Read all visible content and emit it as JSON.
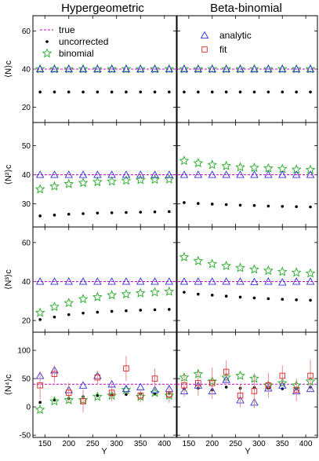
{
  "column_titles": [
    "Hypergeometric",
    "Beta-binomial"
  ],
  "xlabel": "Y",
  "legend_left": {
    "true": "true",
    "uncorrected": "uncorrected",
    "binomial": "binomial"
  },
  "legend_right": {
    "analytic": "analytic",
    "fit": "fit"
  },
  "colors": {
    "true": "#cc00cc",
    "analytic": "#3333dd",
    "fit": "#dd2222",
    "binomial": "#22aa22",
    "uncorrected": "#000000",
    "errorbar": "#e08080"
  },
  "chart_data": [
    {
      "type": "scatter",
      "panel": "top-left",
      "title": "Hypergeometric",
      "ylabel": "⟨N⟩c",
      "xlabel": "",
      "xlim": [
        125,
        425
      ],
      "ylim": [
        12,
        68
      ],
      "xticks": [
        150,
        200,
        250,
        300,
        350,
        400
      ],
      "yticks": [
        20,
        40,
        60
      ],
      "x": [
        140,
        170,
        200,
        230,
        260,
        290,
        320,
        350,
        380,
        410
      ],
      "true_value": 40,
      "series": [
        {
          "name": "uncorrected",
          "marker": "dot",
          "values": [
            28,
            28,
            28,
            28,
            28,
            28,
            28,
            28,
            28,
            28
          ]
        },
        {
          "name": "binomial",
          "marker": "star",
          "values": [
            40,
            40,
            40,
            40,
            40,
            40,
            40,
            40,
            40,
            40
          ]
        },
        {
          "marker": "triangle",
          "values": [
            40,
            40,
            40,
            40,
            40,
            40,
            40,
            40,
            40,
            40
          ]
        }
      ]
    },
    {
      "type": "scatter",
      "panel": "top-right",
      "title": "Beta-binomial",
      "xlim": [
        125,
        425
      ],
      "ylim": [
        12,
        68
      ],
      "xticks": [
        150,
        200,
        250,
        300,
        350,
        400
      ],
      "x": [
        140,
        170,
        200,
        230,
        260,
        290,
        320,
        350,
        380,
        410
      ],
      "true_value": 40,
      "series": [
        {
          "name": "uncorrected",
          "marker": "dot",
          "values": [
            28,
            28,
            28,
            28,
            28,
            28,
            28,
            28,
            28,
            28
          ]
        },
        {
          "name": "binomial",
          "marker": "star",
          "values": [
            40,
            40,
            40,
            40,
            40,
            40,
            40,
            40,
            40,
            40
          ]
        },
        {
          "name": "analytic",
          "marker": "triangle",
          "values": [
            40,
            40,
            40,
            40,
            40,
            40,
            40,
            40,
            40,
            40
          ]
        }
      ]
    },
    {
      "type": "scatter",
      "panel": "second-left",
      "ylabel": "⟨N²⟩c",
      "xlim": [
        125,
        425
      ],
      "ylim": [
        22,
        58
      ],
      "xticks": [
        150,
        200,
        250,
        300,
        350,
        400
      ],
      "yticks": [
        30,
        40,
        50
      ],
      "x": [
        140,
        170,
        200,
        230,
        260,
        290,
        320,
        350,
        380,
        410
      ],
      "true_value": 40,
      "series": [
        {
          "name": "uncorrected",
          "marker": "dot",
          "values": [
            25.8,
            26.1,
            26.4,
            26.6,
            26.8,
            26.9,
            27.0,
            27.1,
            27.2,
            27.3
          ]
        },
        {
          "name": "binomial",
          "marker": "star",
          "values": [
            35,
            36,
            36.8,
            37.2,
            37.5,
            37.7,
            38,
            38.2,
            38.3,
            38.4
          ]
        },
        {
          "marker": "triangle",
          "values": [
            40,
            40,
            40,
            40,
            40,
            40,
            40,
            40,
            40,
            40
          ]
        }
      ]
    },
    {
      "type": "scatter",
      "panel": "second-right",
      "xlim": [
        125,
        425
      ],
      "ylim": [
        22,
        58
      ],
      "xticks": [
        150,
        200,
        250,
        300,
        350,
        400
      ],
      "x": [
        140,
        170,
        200,
        230,
        260,
        290,
        320,
        350,
        380,
        410
      ],
      "true_value": 40,
      "series": [
        {
          "name": "uncorrected",
          "marker": "dot",
          "values": [
            30.4,
            30.1,
            29.9,
            29.7,
            29.5,
            29.4,
            29.2,
            29.1,
            29.0,
            28.9
          ]
        },
        {
          "name": "binomial",
          "marker": "star",
          "values": [
            44.8,
            44,
            43.4,
            43,
            42.6,
            42.4,
            42.2,
            42,
            41.8,
            41.7
          ]
        },
        {
          "name": "analytic",
          "marker": "triangle",
          "values": [
            40,
            40,
            40,
            40,
            40,
            40,
            40,
            40,
            40,
            40
          ]
        }
      ]
    },
    {
      "type": "scatter",
      "panel": "third-left",
      "ylabel": "⟨N³⟩c",
      "xlim": [
        125,
        425
      ],
      "ylim": [
        14,
        68
      ],
      "xticks": [
        150,
        200,
        250,
        300,
        350,
        400
      ],
      "yticks": [
        20,
        40,
        60
      ],
      "x": [
        140,
        170,
        200,
        230,
        260,
        290,
        320,
        350,
        380,
        410
      ],
      "true_value": 40,
      "series": [
        {
          "name": "uncorrected",
          "marker": "dot",
          "values": [
            20.5,
            21.8,
            23,
            23.8,
            24.3,
            24.7,
            25,
            25.3,
            25.5,
            25.7
          ]
        },
        {
          "name": "binomial",
          "marker": "star",
          "values": [
            24,
            27,
            29,
            31,
            32,
            33,
            33.5,
            34,
            34.5,
            34.8
          ]
        },
        {
          "marker": "triangle",
          "values": [
            40,
            40,
            40,
            40,
            40,
            40,
            40,
            40,
            40,
            40
          ]
        }
      ]
    },
    {
      "type": "scatter",
      "panel": "third-right",
      "xlim": [
        125,
        425
      ],
      "ylim": [
        14,
        68
      ],
      "xticks": [
        150,
        200,
        250,
        300,
        350,
        400
      ],
      "x": [
        140,
        170,
        200,
        230,
        260,
        290,
        320,
        350,
        380,
        410
      ],
      "true_value": 40,
      "series": [
        {
          "name": "uncorrected",
          "marker": "dot",
          "values": [
            34.5,
            33.5,
            33,
            32.5,
            32,
            31.6,
            31.2,
            30.9,
            30.6,
            30.4
          ]
        },
        {
          "name": "binomial",
          "marker": "star",
          "values": [
            52.5,
            50.5,
            49,
            48,
            47,
            46.2,
            45.6,
            45,
            44.6,
            44.2
          ]
        },
        {
          "name": "analytic",
          "marker": "triangle",
          "values": [
            40,
            40,
            40,
            40,
            40,
            39.8,
            40,
            39.6,
            40,
            40
          ]
        }
      ]
    },
    {
      "type": "scatter",
      "panel": "bottom-left",
      "ylabel": "⟨N⁴⟩c",
      "xlabel": "Y",
      "xlim": [
        125,
        425
      ],
      "ylim": [
        -54,
        132
      ],
      "xticks": [
        150,
        200,
        250,
        300,
        350,
        400
      ],
      "yticks": [
        -50,
        0,
        50,
        100
      ],
      "x": [
        140,
        170,
        200,
        230,
        260,
        290,
        320,
        350,
        380,
        410
      ],
      "true_value": 40,
      "series": [
        {
          "name": "uncorrected",
          "marker": "dot",
          "values": [
            8,
            12,
            15,
            18,
            20,
            21,
            22,
            23,
            23,
            24
          ]
        },
        {
          "name": "binomial",
          "marker": "star",
          "values": [
            -5,
            10,
            12,
            12,
            18,
            20,
            30,
            18,
            25,
            20
          ]
        },
        {
          "marker": "triangle",
          "values": [
            55,
            65,
            30,
            38,
            55,
            40,
            32,
            35,
            30,
            32
          ]
        },
        {
          "name": "fit",
          "marker": "square",
          "values": [
            38,
            58,
            25,
            10,
            52,
            25,
            68,
            20,
            50,
            22
          ],
          "error": [
            25,
            15,
            18,
            20,
            12,
            15,
            22,
            12,
            18,
            15
          ]
        }
      ]
    },
    {
      "type": "scatter",
      "panel": "bottom-right",
      "xlabel": "Y",
      "xlim": [
        125,
        425
      ],
      "ylim": [
        -54,
        132
      ],
      "xticks": [
        150,
        200,
        250,
        300,
        350,
        400
      ],
      "x": [
        140,
        170,
        200,
        230,
        260,
        290,
        320,
        350,
        380,
        410
      ],
      "true_value": 40,
      "series": [
        {
          "name": "uncorrected",
          "marker": "dot",
          "values": [
            32,
            33,
            30,
            35,
            33,
            34,
            33,
            32,
            32,
            35
          ]
        },
        {
          "name": "binomial",
          "marker": "star",
          "values": [
            52,
            58,
            45,
            52,
            55,
            50,
            38,
            42,
            38,
            45
          ]
        },
        {
          "name": "analytic",
          "marker": "triangle",
          "values": [
            28,
            38,
            28,
            48,
            12,
            8,
            33,
            38,
            28,
            32
          ]
        },
        {
          "name": "fit",
          "marker": "square",
          "values": [
            38,
            42,
            42,
            62,
            20,
            28,
            38,
            55,
            30,
            55
          ],
          "error": [
            20,
            22,
            28,
            20,
            20,
            30,
            22,
            18,
            20,
            28
          ]
        }
      ]
    }
  ]
}
